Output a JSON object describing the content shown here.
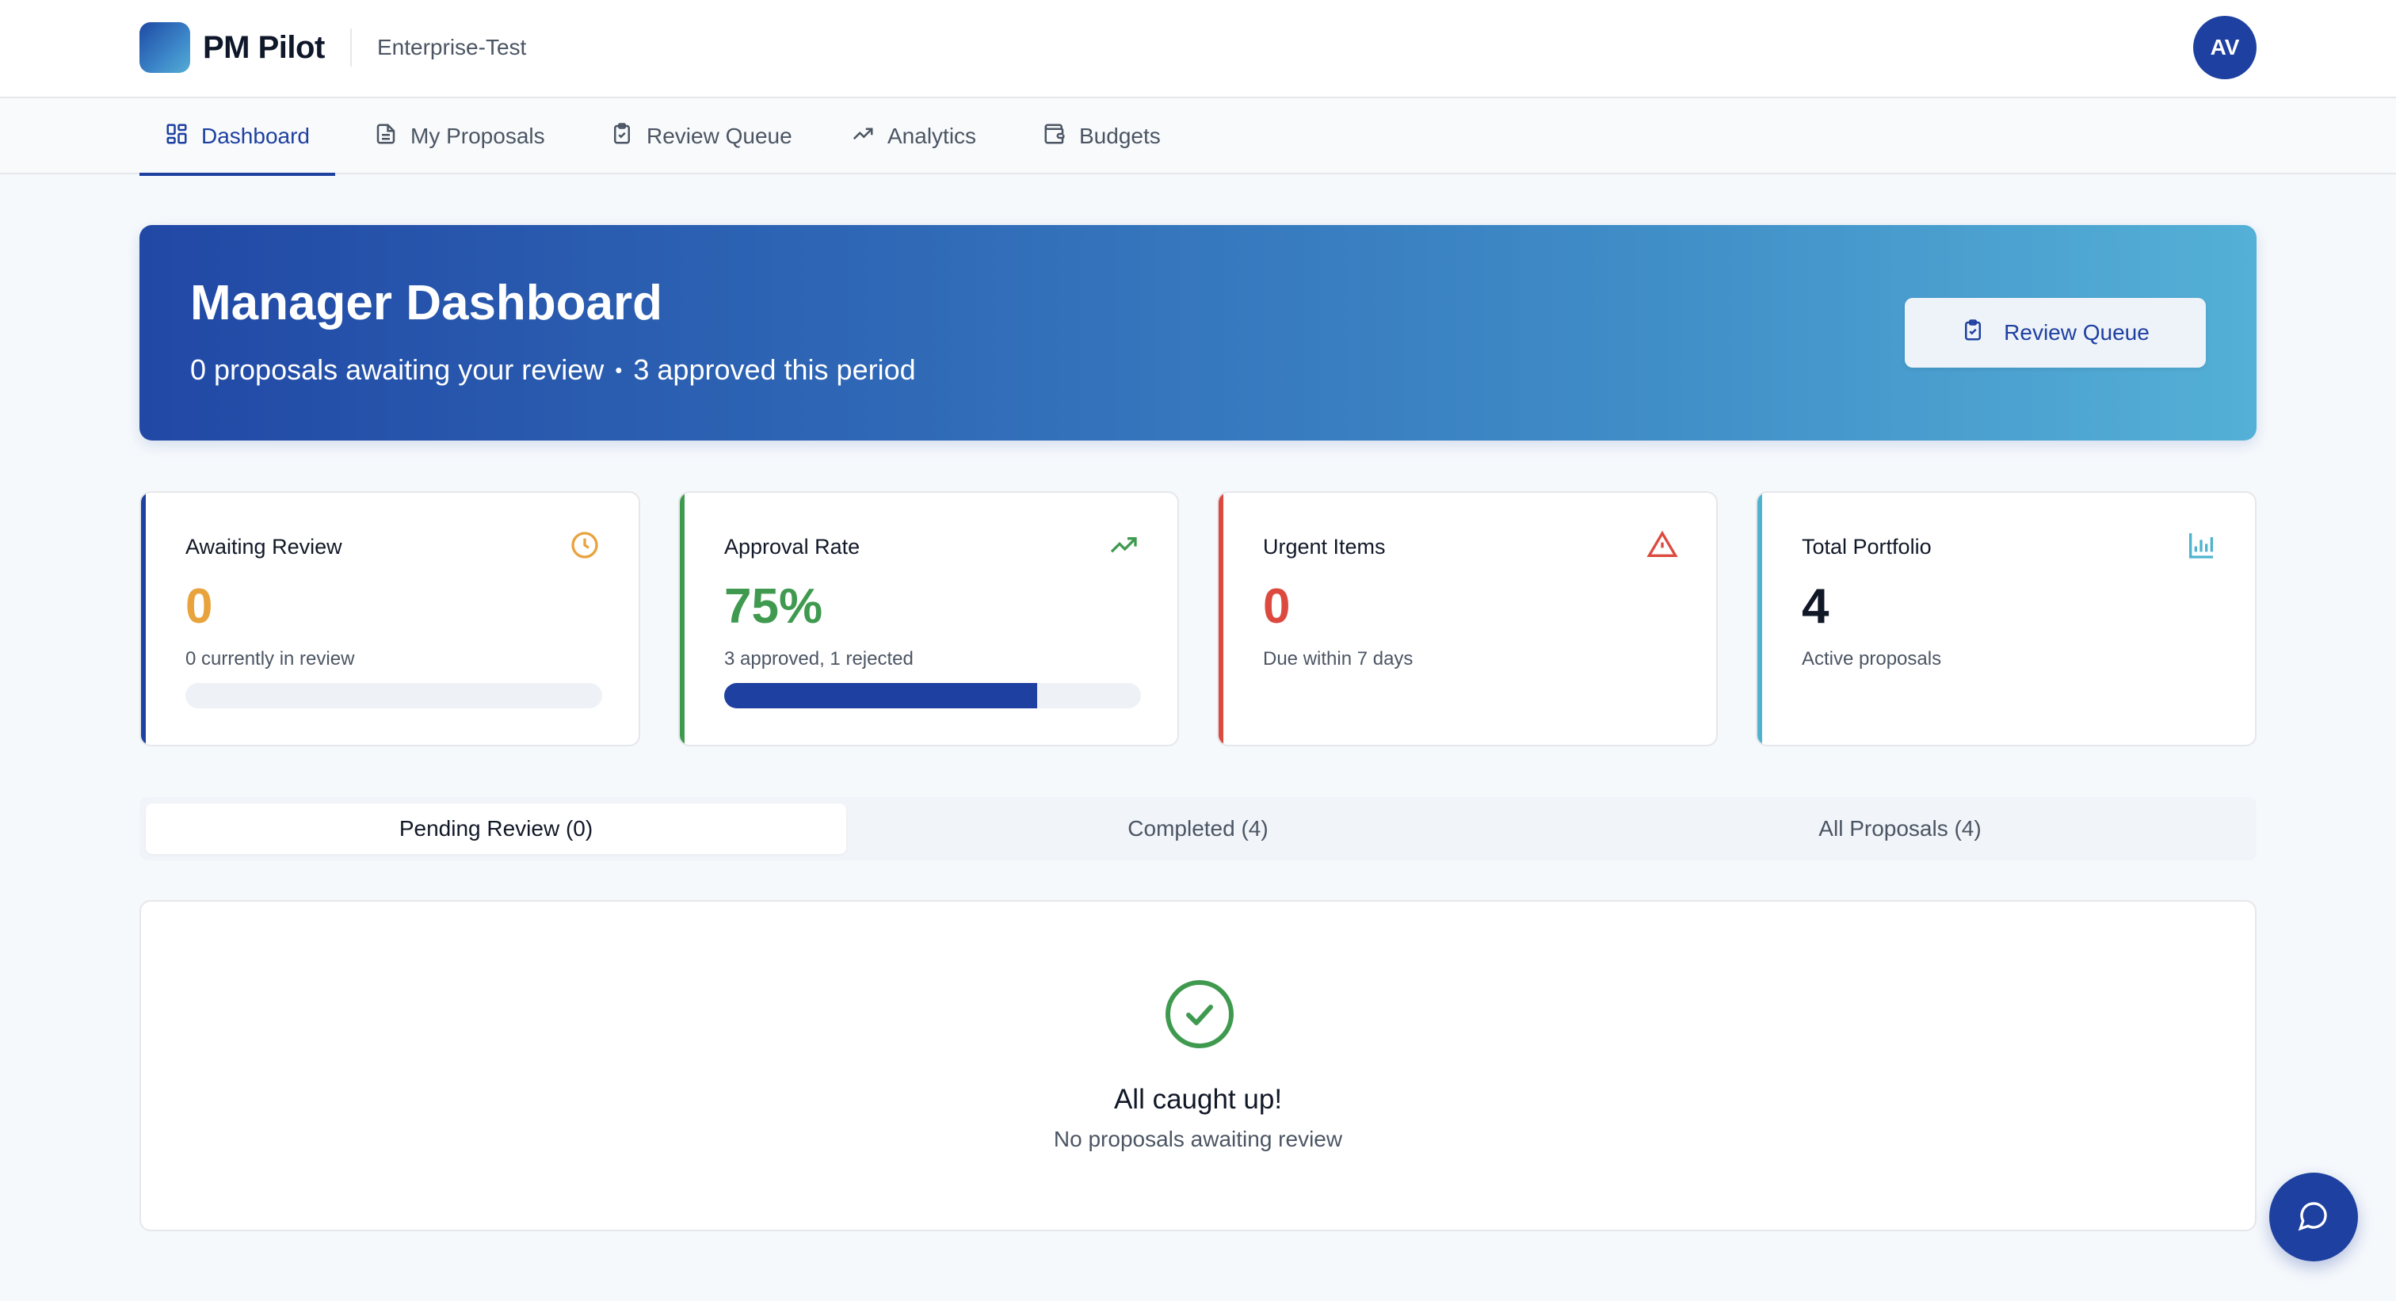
{
  "header": {
    "app_name": "PM Pilot",
    "org_name": "Enterprise-Test",
    "avatar_initials": "AV",
    "logo_icon": "app-logo-gradient-square"
  },
  "nav": {
    "items": [
      {
        "label": "Dashboard",
        "icon": "grid-icon",
        "active": true
      },
      {
        "label": "My Proposals",
        "icon": "document-icon",
        "active": false
      },
      {
        "label": "Review Queue",
        "icon": "clipboard-check-icon",
        "active": false
      },
      {
        "label": "Analytics",
        "icon": "trending-up-icon",
        "active": false
      },
      {
        "label": "Budgets",
        "icon": "wallet-icon",
        "active": false
      }
    ]
  },
  "hero": {
    "title": "Manager Dashboard",
    "subtitle_part1": "0 proposals awaiting your review",
    "separator": "•",
    "subtitle_part2": "3 approved this period",
    "button_label": "Review Queue",
    "button_icon": "clipboard-check-icon"
  },
  "stats": [
    {
      "title": "Awaiting Review",
      "value": "0",
      "note": "0 currently in review",
      "icon": "clock-icon",
      "accent": "#1e40a0",
      "value_color": "#e8a33d",
      "progress": 0
    },
    {
      "title": "Approval Rate",
      "value": "75%",
      "note": "3 approved, 1 rejected",
      "icon": "trending-up-icon",
      "accent": "#3f9a4f",
      "value_color": "#3f9a4f",
      "progress": 0.75
    },
    {
      "title": "Urgent Items",
      "value": "0",
      "note": "Due within 7 days",
      "icon": "alert-triangle-icon",
      "accent": "#dc4a3f",
      "value_color": "#dc4a3f"
    },
    {
      "title": "Total Portfolio",
      "value": "4",
      "note": "Active proposals",
      "icon": "bar-chart-icon",
      "accent": "#4fb3cf",
      "value_color": "#111827"
    }
  ],
  "tabs": [
    {
      "label": "Pending Review (0)",
      "active": true
    },
    {
      "label": "Completed (4)",
      "active": false
    },
    {
      "label": "All Proposals (4)",
      "active": false
    }
  ],
  "empty_state": {
    "icon": "check-circle-icon",
    "title": "All caught up!",
    "subtitle": "No proposals awaiting review"
  },
  "fab": {
    "icon": "chat-bubble-icon"
  },
  "colors": {
    "primary": "#1e40a0",
    "success": "#3f9a4f",
    "warning": "#e8a33d",
    "danger": "#dc4a3f",
    "info": "#4fb3cf"
  }
}
